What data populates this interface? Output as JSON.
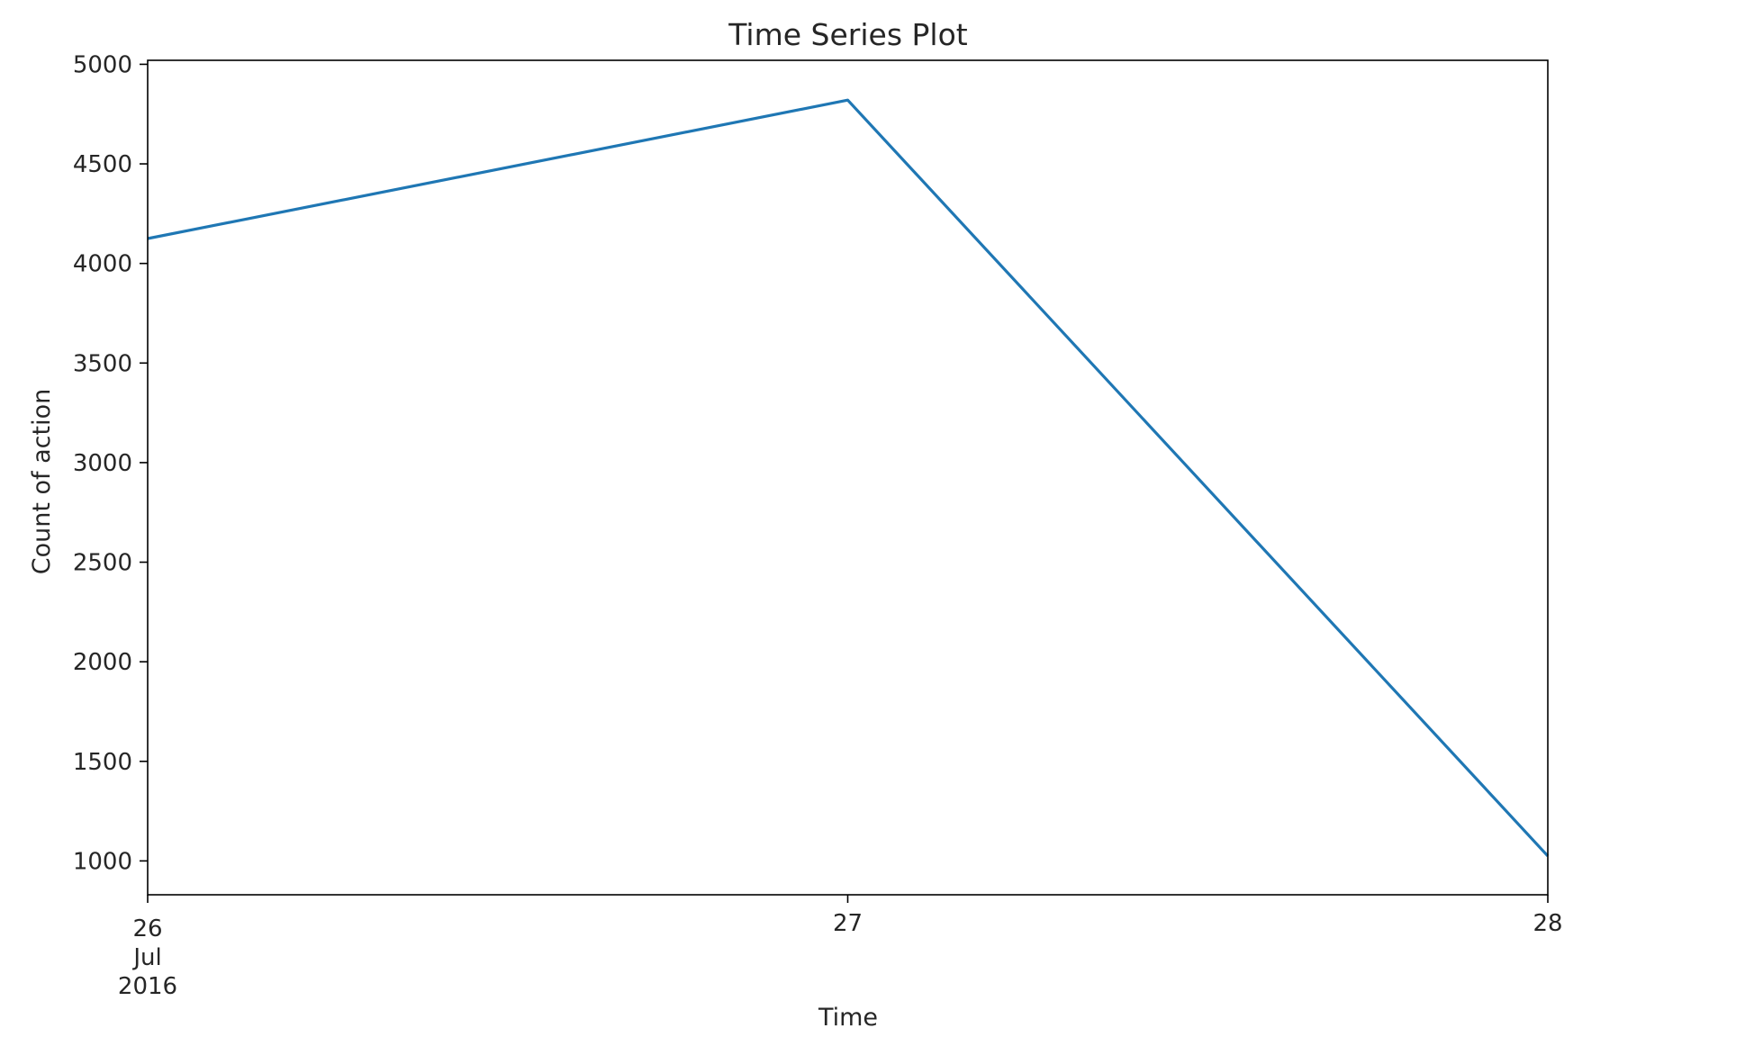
{
  "chart_data": {
    "type": "line",
    "title": "Time Series Plot",
    "xlabel": "Time",
    "ylabel": "Count of action",
    "x": [
      "2016-07-26",
      "2016-07-27",
      "2016-07-28"
    ],
    "x_tick_labels": [
      [
        "26",
        "Jul",
        "2016"
      ],
      [
        "27"
      ],
      [
        "28"
      ]
    ],
    "series": [
      {
        "values": [
          4125,
          4820,
          1025
        ],
        "color": "#1f77b4"
      }
    ],
    "y_ticks": [
      1000,
      1500,
      2000,
      2500,
      3000,
      3500,
      4000,
      4500,
      5000
    ],
    "ylim": [
      830,
      5020
    ],
    "grid": false,
    "legend": "none"
  }
}
